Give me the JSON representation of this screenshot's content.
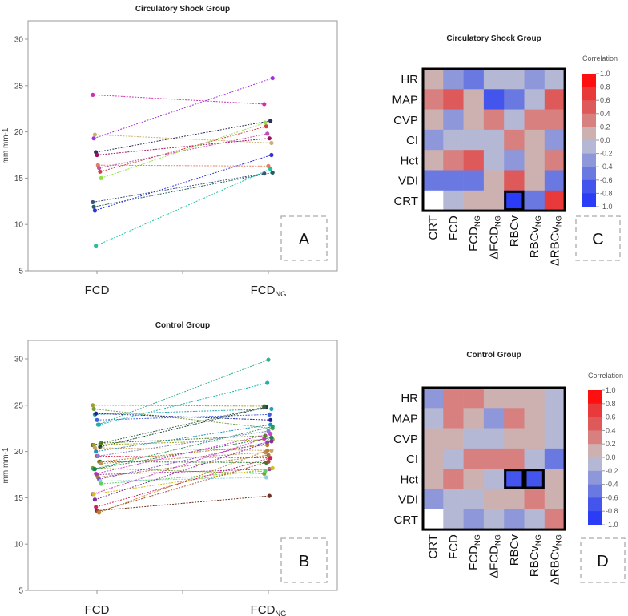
{
  "chart_data": [
    {
      "panel": "A",
      "type": "line",
      "title": "Circulatory Shock Group",
      "ylabel": "mm mm-1",
      "categories": [
        {
          "main": "FCD",
          "sub": ""
        },
        {
          "main": "FCD",
          "sub": "NG"
        }
      ],
      "yticks": [
        5,
        10,
        15,
        20,
        25,
        30
      ],
      "ylim": [
        5,
        31
      ],
      "pairs": [
        {
          "values": [
            24.0,
            23.0
          ],
          "color": "#d030b0"
        },
        {
          "values": [
            19.3,
            25.8
          ],
          "color": "#a030e0"
        },
        {
          "values": [
            19.7,
            18.8
          ],
          "color": "#c8b070"
        },
        {
          "values": [
            17.8,
            21.2
          ],
          "color": "#303060"
        },
        {
          "values": [
            17.5,
            19.3
          ],
          "color": "#a01060"
        },
        {
          "values": [
            16.4,
            16.3
          ],
          "color": "#e08060"
        },
        {
          "values": [
            16.1,
            19.8
          ],
          "color": "#c050b0"
        },
        {
          "values": [
            15.7,
            20.6
          ],
          "color": "#d04040"
        },
        {
          "values": [
            15.0,
            21.0
          ],
          "color": "#90e040"
        },
        {
          "values": [
            12.4,
            15.5
          ],
          "color": "#405080"
        },
        {
          "values": [
            11.9,
            15.6
          ],
          "color": "#206060"
        },
        {
          "values": [
            11.5,
            17.5
          ],
          "color": "#3030e0"
        },
        {
          "values": [
            7.7,
            16.0
          ],
          "color": "#20c0a0"
        }
      ]
    },
    {
      "panel": "B",
      "type": "line",
      "title": "Control Group",
      "ylabel": "mm mm-1",
      "categories": [
        {
          "main": "FCD",
          "sub": ""
        },
        {
          "main": "FCD",
          "sub": "NG"
        }
      ],
      "yticks": [
        5,
        10,
        15,
        20,
        25,
        30
      ],
      "ylim": [
        5,
        31
      ],
      "pairs": [
        {
          "values": [
            25.0,
            24.9
          ],
          "color": "#a0a030"
        },
        {
          "values": [
            24.6,
            22.5
          ],
          "color": "#70a040"
        },
        {
          "values": [
            24.0,
            24.6
          ],
          "color": "#20a0b0"
        },
        {
          "values": [
            24.1,
            23.4
          ],
          "color": "#202090"
        },
        {
          "values": [
            23.4,
            24.0
          ],
          "color": "#4060e0"
        },
        {
          "values": [
            22.9,
            29.9
          ],
          "color": "#30b090"
        },
        {
          "values": [
            22.9,
            27.4
          ],
          "color": "#20b0b0"
        },
        {
          "values": [
            20.5,
            24.8
          ],
          "color": "#204030"
        },
        {
          "values": [
            20.9,
            21.7
          ],
          "color": "#508020"
        },
        {
          "values": [
            20.7,
            24.8
          ],
          "color": "#306050"
        },
        {
          "values": [
            20.7,
            21.3
          ],
          "color": "#a0a020"
        },
        {
          "values": [
            20.4,
            20.1
          ],
          "color": "#d0a060"
        },
        {
          "values": [
            20.0,
            22.9
          ],
          "color": "#2090c0"
        },
        {
          "values": [
            19.5,
            19.3
          ],
          "color": "#e03050"
        },
        {
          "values": [
            19.5,
            22.2
          ],
          "color": "#8080d0"
        },
        {
          "values": [
            18.9,
            20.7
          ],
          "color": "#c08020"
        },
        {
          "values": [
            18.9,
            18.8
          ],
          "color": "#208030"
        },
        {
          "values": [
            18.7,
            19.9
          ],
          "color": "#c09060"
        },
        {
          "values": [
            18.2,
            17.6
          ],
          "color": "#80a020"
        },
        {
          "values": [
            18.1,
            22.7
          ],
          "color": "#20a060"
        },
        {
          "values": [
            18.1,
            21.5
          ],
          "color": "#208050"
        },
        {
          "values": [
            17.6,
            21.9
          ],
          "color": "#d040d0"
        },
        {
          "values": [
            17.5,
            18.1
          ],
          "color": "#a040a0"
        },
        {
          "values": [
            17.2,
            19.6
          ],
          "color": "#a08040"
        },
        {
          "values": [
            17.0,
            21.0
          ],
          "color": "#8050c0"
        },
        {
          "values": [
            16.8,
            17.2
          ],
          "color": "#90d0e0"
        },
        {
          "values": [
            16.5,
            17.9
          ],
          "color": "#60d060"
        },
        {
          "values": [
            15.4,
            21.4
          ],
          "color": "#d030c0"
        },
        {
          "values": [
            15.4,
            18.2
          ],
          "color": "#d0c020"
        },
        {
          "values": [
            14.8,
            21.1
          ],
          "color": "#8030a0"
        },
        {
          "values": [
            14.0,
            19.3
          ],
          "color": "#d02060"
        },
        {
          "values": [
            13.6,
            15.2
          ],
          "color": "#703020"
        },
        {
          "values": [
            13.5,
            18.9
          ],
          "color": "#a05030"
        },
        {
          "values": [
            13.4,
            20.1
          ],
          "color": "#c08030"
        }
      ]
    },
    {
      "panel": "C",
      "type": "heatmap",
      "title": "Circulatory Shock Group",
      "legend_title": "Correlation",
      "rows": [
        "HR",
        "MAP",
        "CVP",
        "CI",
        "Hct",
        "VDI",
        "CRT"
      ],
      "columns": [
        {
          "main": "CRT",
          "sub": ""
        },
        {
          "main": "FCD",
          "sub": ""
        },
        {
          "main": "FCD",
          "sub": "NG"
        },
        {
          "main": "ΔFCD",
          "sub": "NG"
        },
        {
          "main": "RBCv",
          "sub": ""
        },
        {
          "main": "RBCv",
          "sub": "NG"
        },
        {
          "main": "ΔRBCv",
          "sub": "NG"
        }
      ],
      "values": [
        [
          0.1,
          -0.3,
          -0.5,
          -0.1,
          -0.1,
          -0.3,
          -0.1
        ],
        [
          0.3,
          0.5,
          0.1,
          -0.7,
          -0.5,
          -0.1,
          0.5
        ],
        [
          0.1,
          -0.3,
          0.1,
          0.3,
          -0.1,
          0.3,
          0.3
        ],
        [
          -0.3,
          -0.1,
          -0.1,
          -0.1,
          0.3,
          0.1,
          -0.3
        ],
        [
          0.1,
          0.3,
          0.5,
          -0.1,
          -0.3,
          0.1,
          0.3
        ],
        [
          -0.5,
          -0.5,
          -0.5,
          0.1,
          0.5,
          0.1,
          -0.5
        ],
        [
          null,
          -0.1,
          0.1,
          0.1,
          -0.9,
          -0.5,
          0.7
        ]
      ],
      "highlighted": [
        [
          6,
          4
        ]
      ],
      "colorbar_ticks": [
        "1.0",
        "0.8",
        "0.6",
        "0.4",
        "0.2",
        "0.0",
        "-0.2",
        "-0.4",
        "-0.6",
        "-0.8",
        "-1.0"
      ],
      "vlim": [
        -1,
        1
      ]
    },
    {
      "panel": "D",
      "type": "heatmap",
      "title": "Control Group",
      "legend_title": "Correlation",
      "rows": [
        "HR",
        "MAP",
        "CVP",
        "CI",
        "Hct",
        "VDI",
        "CRT"
      ],
      "columns": [
        {
          "main": "CRT",
          "sub": ""
        },
        {
          "main": "FCD",
          "sub": ""
        },
        {
          "main": "FCD",
          "sub": "NG"
        },
        {
          "main": "ΔFCD",
          "sub": "NG"
        },
        {
          "main": "RBCv",
          "sub": ""
        },
        {
          "main": "RBCv",
          "sub": "NG"
        },
        {
          "main": "ΔRBCv",
          "sub": "NG"
        }
      ],
      "values": [
        [
          -0.3,
          0.3,
          0.3,
          0.1,
          0.1,
          0.1,
          -0.1
        ],
        [
          -0.1,
          0.3,
          0.1,
          -0.3,
          0.3,
          0.1,
          -0.1
        ],
        [
          0.1,
          0.1,
          -0.1,
          -0.1,
          0.1,
          0.1,
          -0.1
        ],
        [
          0.1,
          -0.1,
          0.3,
          0.3,
          0.3,
          -0.1,
          -0.5
        ],
        [
          0.1,
          0.3,
          0.1,
          -0.1,
          -0.7,
          -0.7,
          0.1
        ],
        [
          -0.3,
          -0.1,
          -0.1,
          0.1,
          0.1,
          0.3,
          0.1
        ],
        [
          null,
          -0.1,
          -0.3,
          -0.1,
          -0.3,
          -0.1,
          0.3
        ]
      ],
      "highlighted": [
        [
          4,
          4
        ],
        [
          4,
          5
        ]
      ],
      "colorbar_ticks": [
        "1.0",
        "0.8",
        "0.6",
        "0.4",
        "0.2",
        "0.0",
        "-0.2",
        "-0.4",
        "-0.6",
        "-0.8",
        "-1.0"
      ],
      "vlim": [
        -1,
        1
      ]
    }
  ],
  "colors": {
    "scale": [
      "#2a3cf5",
      "#4455ee",
      "#6a78e2",
      "#8e97d9",
      "#b4b8d4",
      "#cdb0b0",
      "#d88080",
      "#de5a5a",
      "#e83a3a",
      "#ff1010"
    ]
  }
}
